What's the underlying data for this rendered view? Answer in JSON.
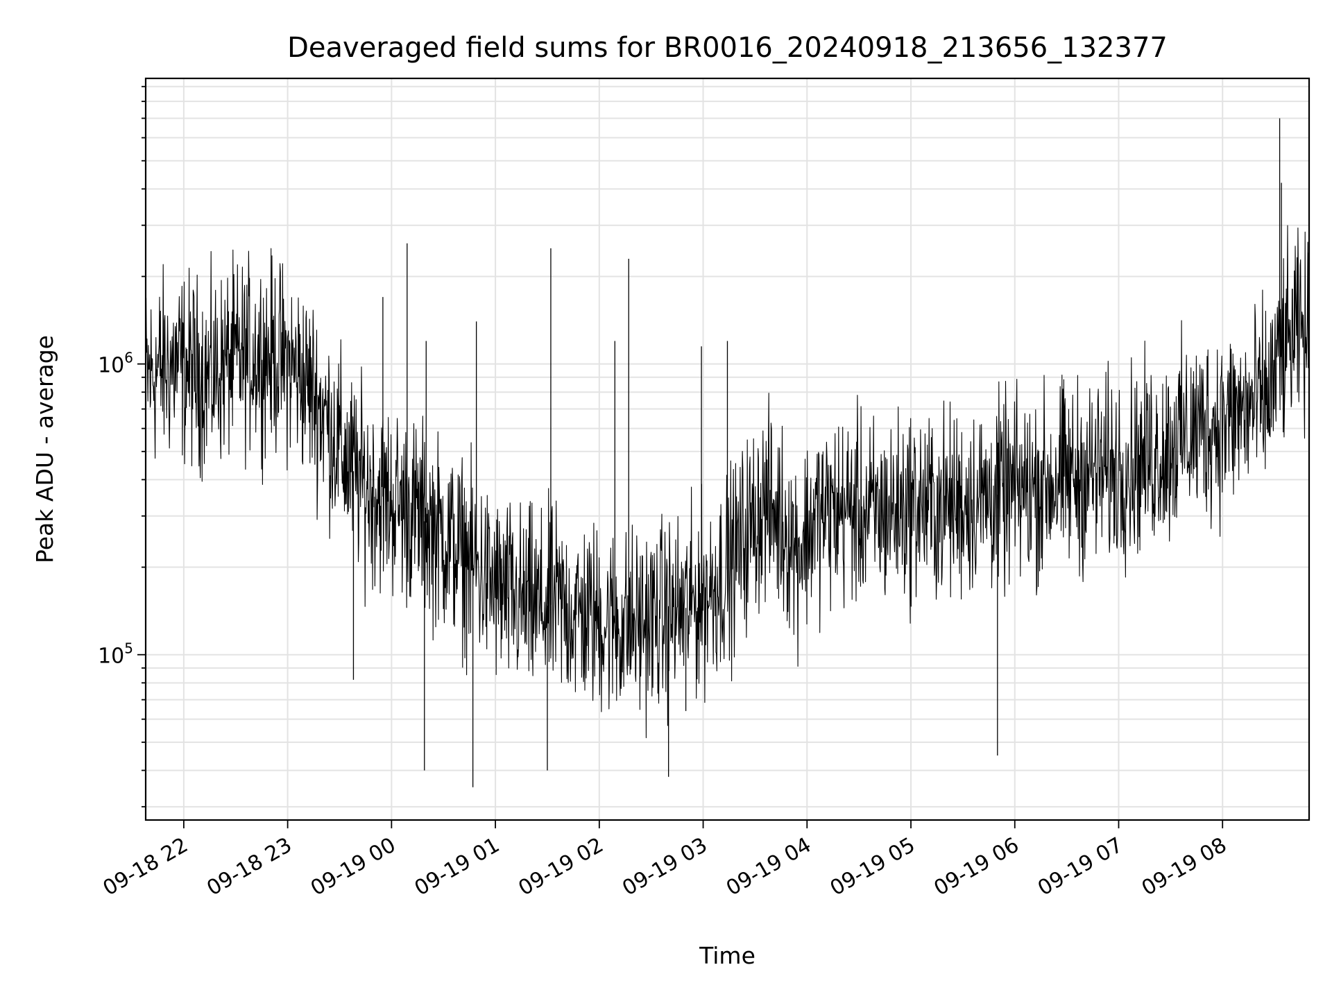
{
  "colors": {
    "series": "#000000",
    "grid": "#e3e3e3",
    "background": "#ffffff"
  },
  "chart_data": {
    "type": "line",
    "title": "Deaveraged field sums for BR0016_20240918_213656_132377",
    "xlabel": "Time",
    "ylabel": "Peak ADU - average",
    "yscale": "log",
    "grid": true,
    "xlim": [
      "2024-09-18 21:38",
      "2024-09-19 08:50"
    ],
    "ylim": [
      27000,
      9600000
    ],
    "x_ticks": [
      "09-18 22",
      "09-18 23",
      "09-19 00",
      "09-19 01",
      "09-19 02",
      "09-19 03",
      "09-19 04",
      "09-19 05",
      "09-19 06",
      "09-19 07",
      "09-19 08"
    ],
    "y_ticks": [
      {
        "base": "10",
        "exp": "5",
        "value": 100000
      },
      {
        "base": "10",
        "exp": "6",
        "value": 1000000
      }
    ],
    "series": [
      {
        "x": [
          "2024-09-18 21:38",
          "2024-09-18 21:45",
          "2024-09-18 21:55",
          "2024-09-18 22:05",
          "2024-09-18 22:15",
          "2024-09-18 22:25",
          "2024-09-18 22:35",
          "2024-09-18 22:45",
          "2024-09-18 22:55",
          "2024-09-18 23:05",
          "2024-09-18 23:15",
          "2024-09-18 23:25",
          "2024-09-18 23:35",
          "2024-09-18 23:45",
          "2024-09-18 23:55",
          "2024-09-19 00:05",
          "2024-09-19 00:15",
          "2024-09-19 00:25",
          "2024-09-19 00:35",
          "2024-09-19 00:45",
          "2024-09-19 00:55",
          "2024-09-19 01:05",
          "2024-09-19 01:15",
          "2024-09-19 01:25",
          "2024-09-19 01:35",
          "2024-09-19 01:45",
          "2024-09-19 01:55",
          "2024-09-19 02:05",
          "2024-09-19 02:15",
          "2024-09-19 02:25",
          "2024-09-19 02:35",
          "2024-09-19 02:45",
          "2024-09-19 02:55",
          "2024-09-19 03:05",
          "2024-09-19 03:15",
          "2024-09-19 03:25",
          "2024-09-19 03:35",
          "2024-09-19 03:45",
          "2024-09-19 03:55",
          "2024-09-19 04:05",
          "2024-09-19 04:15",
          "2024-09-19 04:25",
          "2024-09-19 04:35",
          "2024-09-19 04:45",
          "2024-09-19 04:55",
          "2024-09-19 05:05",
          "2024-09-19 05:15",
          "2024-09-19 05:25",
          "2024-09-19 05:35",
          "2024-09-19 05:45",
          "2024-09-19 05:55",
          "2024-09-19 06:05",
          "2024-09-19 06:15",
          "2024-09-19 06:25",
          "2024-09-19 06:35",
          "2024-09-19 06:45",
          "2024-09-19 06:55",
          "2024-09-19 07:05",
          "2024-09-19 07:15",
          "2024-09-19 07:25",
          "2024-09-19 07:35",
          "2024-09-19 07:45",
          "2024-09-19 07:55",
          "2024-09-19 08:05",
          "2024-09-19 08:15",
          "2024-09-19 08:25",
          "2024-09-19 08:35",
          "2024-09-19 08:45",
          "2024-09-19 08:50"
        ],
        "values": [
          900000,
          950000,
          1000000,
          950000,
          900000,
          1000000,
          1050000,
          1100000,
          1050000,
          950000,
          800000,
          600000,
          450000,
          380000,
          350000,
          330000,
          300000,
          270000,
          240000,
          210000,
          180000,
          160000,
          150000,
          145000,
          150000,
          140000,
          135000,
          130000,
          125000,
          130000,
          135000,
          140000,
          150000,
          170000,
          200000,
          260000,
          330000,
          290000,
          230000,
          300000,
          310000,
          320000,
          300000,
          310000,
          320000,
          330000,
          320000,
          330000,
          340000,
          350000,
          360000,
          370000,
          380000,
          400000,
          410000,
          420000,
          430000,
          450000,
          470000,
          500000,
          550000,
          600000,
          620000,
          650000,
          700000,
          750000,
          1100000,
          1300000,
          1200000
        ],
        "spikes": [
          {
            "x": "2024-09-19 00:09",
            "value": 2600000
          },
          {
            "x": "2024-09-19 01:32",
            "value": 2500000
          },
          {
            "x": "2024-09-19 02:17",
            "value": 2300000
          },
          {
            "x": "2024-09-18 23:55",
            "value": 1700000
          },
          {
            "x": "2024-09-19 00:49",
            "value": 1400000
          },
          {
            "x": "2024-09-19 00:20",
            "value": 1200000
          },
          {
            "x": "2024-09-19 02:09",
            "value": 1200000
          },
          {
            "x": "2024-09-19 03:14",
            "value": 1200000
          },
          {
            "x": "2024-09-19 02:59",
            "value": 1150000
          },
          {
            "x": "2024-09-19 08:33",
            "value": 7000000
          },
          {
            "x": "2024-09-19 08:34",
            "value": 4200000
          },
          {
            "x": "2024-09-19 00:47",
            "value": 35000
          },
          {
            "x": "2024-09-19 02:40",
            "value": 38000
          },
          {
            "x": "2024-09-19 05:50",
            "value": 45000
          },
          {
            "x": "2024-09-19 00:19",
            "value": 40000
          },
          {
            "x": "2024-09-19 01:30",
            "value": 40000
          },
          {
            "x": "2024-09-18 23:38",
            "value": 82000
          },
          {
            "x": "2024-09-19 02:50",
            "value": 64000
          }
        ]
      }
    ]
  }
}
